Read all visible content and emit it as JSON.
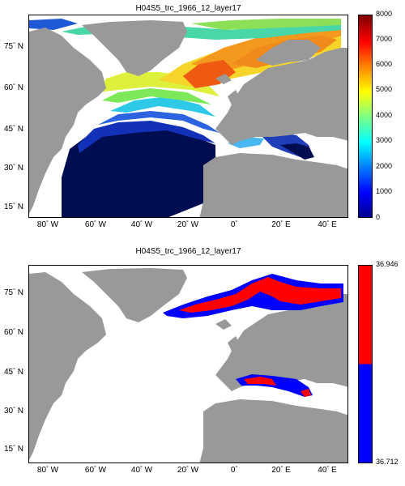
{
  "panels": [
    {
      "title": "H04S5_trc_1966_12_layer17",
      "colorbar": {
        "ticks": [
          "8000",
          "7000",
          "6000",
          "5000",
          "4000",
          "3000",
          "2000",
          "1000",
          "0"
        ],
        "colormap": "jet",
        "vmin": 0,
        "vmax": 8000
      },
      "ylabels": [
        {
          "deg": "75",
          "dir": "N"
        },
        {
          "deg": "60",
          "dir": "N"
        },
        {
          "deg": "45",
          "dir": "N"
        },
        {
          "deg": "30",
          "dir": "N"
        },
        {
          "deg": "15",
          "dir": "N"
        }
      ],
      "xlabels": [
        {
          "deg": "80",
          "dir": "W"
        },
        {
          "deg": "60",
          "dir": "W"
        },
        {
          "deg": "40",
          "dir": "W"
        },
        {
          "deg": "20",
          "dir": "W"
        },
        {
          "deg": "0",
          "dir": ""
        },
        {
          "deg": "20",
          "dir": "E"
        },
        {
          "deg": "40",
          "dir": "E"
        }
      ]
    },
    {
      "title": "H04S5_trc_1966_12_layer17",
      "colorbar": {
        "ticks": [
          "36.946",
          "36.712"
        ],
        "colors": [
          "#ff0000",
          "#0000ff"
        ]
      },
      "ylabels": [
        {
          "deg": "75",
          "dir": "N"
        },
        {
          "deg": "60",
          "dir": "N"
        },
        {
          "deg": "45",
          "dir": "N"
        },
        {
          "deg": "30",
          "dir": "N"
        },
        {
          "deg": "15",
          "dir": "N"
        }
      ],
      "xlabels": [
        {
          "deg": "80",
          "dir": "W"
        },
        {
          "deg": "60",
          "dir": "W"
        },
        {
          "deg": "40",
          "dir": "W"
        },
        {
          "deg": "20",
          "dir": "W"
        },
        {
          "deg": "0",
          "dir": ""
        },
        {
          "deg": "20",
          "dir": "E"
        },
        {
          "deg": "40",
          "dir": "E"
        }
      ]
    }
  ],
  "colors": {
    "land": "#999999",
    "ocean_nodata": "#ffffff",
    "deep": "#000d50"
  }
}
